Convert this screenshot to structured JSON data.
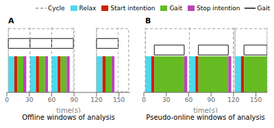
{
  "chart_data": [
    {
      "type": "bar",
      "orientation": "horizontal",
      "title": "A",
      "subtitle": "Offline windows of analysis",
      "x_label": "time(s)",
      "xlim": [
        0,
        165
      ],
      "xticks": [
        0,
        30,
        60,
        90,
        120,
        150
      ],
      "ylim": [
        0,
        1
      ],
      "tick_labels": "x",
      "legend": "upper right",
      "cycles": {
        "name": "Cycle",
        "color": "#999999",
        "line_style": "dashed",
        "x": [
          2,
          120
        ],
        "width": [
          88,
          43
        ]
      },
      "inner_cycles": {
        "color": "#999999",
        "line_style": "dashed",
        "x": [
          2,
          31,
          60,
          120
        ],
        "width": [
          29,
          29,
          29,
          29
        ]
      },
      "series": [
        {
          "name": "Relax",
          "color": "#4DD9EC",
          "x": [
            2,
            31,
            60,
            120
          ],
          "width": [
            8,
            8,
            8,
            8
          ]
        },
        {
          "name": "Start intention",
          "color": "#CC2200",
          "x": [
            10,
            39,
            68,
            128
          ],
          "width": [
            4,
            4,
            4,
            4
          ]
        },
        {
          "name": "Gait",
          "color": "#66BB22",
          "x": [
            14,
            43,
            72,
            132
          ],
          "width": [
            8,
            8,
            8,
            8
          ]
        },
        {
          "name": "Stop intention",
          "color": "#BB44BB",
          "x": [
            22,
            51,
            80,
            140
          ],
          "width": [
            4,
            4,
            4,
            4
          ]
        }
      ],
      "gait_boxes": {
        "name": "Gait",
        "color": "#111111",
        "line_style": "solid",
        "x1": [
          2,
          31,
          60,
          120
        ],
        "x2": [
          31,
          60,
          89,
          149
        ],
        "ytop": [
          0.82,
          0.82,
          0.82,
          0.82
        ],
        "ybot": [
          0.67,
          0.67,
          0.67,
          0.67
        ]
      }
    },
    {
      "type": "bar",
      "orientation": "horizontal",
      "title": "B",
      "subtitle": "Pseudo-online windows of analysis",
      "x_label": "time(s)",
      "xlim": [
        0,
        165
      ],
      "xticks": [
        0,
        30,
        60,
        90,
        120,
        150
      ],
      "ylim": [
        0,
        1
      ],
      "tick_labels": "x",
      "cycles": {
        "color": "#999999",
        "line_style": "dashed",
        "x": [
          2,
          122
        ],
        "width": [
          118,
          43
        ]
      },
      "inner_cycles": {
        "color": "#999999",
        "line_style": "dashed",
        "x": [
          2,
          61,
          122
        ],
        "width": [
          59,
          59,
          43
        ]
      },
      "series": [
        {
          "color": "#4DD9EC",
          "x": [
            2,
            61,
            122
          ],
          "width": [
            8,
            8,
            8
          ]
        },
        {
          "color": "#CC2200",
          "x": [
            10,
            69,
            130
          ],
          "width": [
            4,
            4,
            4
          ]
        },
        {
          "color": "#66BB22",
          "x": [
            14,
            73,
            134
          ],
          "width": [
            40,
            40,
            31
          ]
        },
        {
          "color": "#BB44BB",
          "x": [
            54,
            113
          ],
          "width": [
            4,
            4
          ]
        }
      ],
      "gait_boxes": {
        "color": "#111111",
        "line_style": "solid",
        "x1": [
          14,
          73,
          134
        ],
        "x2": [
          54,
          113,
          165
        ],
        "ytop": [
          0.72,
          0.72,
          0.72
        ],
        "ybot": [
          0.57,
          0.57,
          0.57
        ]
      }
    }
  ]
}
